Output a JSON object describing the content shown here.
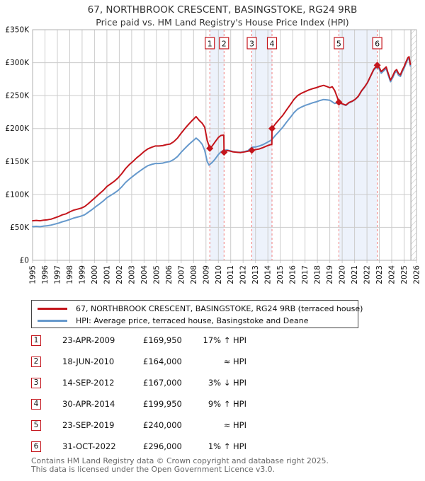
{
  "title": "67, NORTHBROOK CRESCENT, BASINGSTOKE, RG24 9RB",
  "subtitle": "Price paid vs. HM Land Registry's House Price Index (HPI)",
  "chart_data": {
    "type": "line",
    "xlim": [
      1995,
      2026
    ],
    "ylim": [
      0,
      350000
    ],
    "x_tick_years": [
      1995,
      1996,
      1997,
      1998,
      1999,
      2000,
      2001,
      2002,
      2003,
      2004,
      2005,
      2006,
      2007,
      2008,
      2009,
      2010,
      2011,
      2012,
      2013,
      2014,
      2015,
      2016,
      2017,
      2018,
      2019,
      2020,
      2021,
      2022,
      2023,
      2024,
      2025,
      2026
    ],
    "y_ticks": [
      {
        "v": 0,
        "label": "£0"
      },
      {
        "v": 50000,
        "label": "£50K"
      },
      {
        "v": 100000,
        "label": "£100K"
      },
      {
        "v": 150000,
        "label": "£150K"
      },
      {
        "v": 200000,
        "label": "£200K"
      },
      {
        "v": 250000,
        "label": "£250K"
      },
      {
        "v": 300000,
        "label": "£300K"
      },
      {
        "v": 350000,
        "label": "£350K"
      }
    ],
    "grid": true,
    "legend_position": "below",
    "accent": "#c4151c",
    "dash_color": "#f08080",
    "band_color": "#edf2fb",
    "grid_color": "#cccccc",
    "frame_color": "#b0b0b0",
    "future_start": 2025.55,
    "bands": [
      [
        2009.31,
        2010.46
      ],
      [
        2012.7,
        2014.33
      ],
      [
        2019.73,
        2022.83
      ]
    ],
    "markers": [
      {
        "n": 1,
        "year": 2009.31,
        "price": 169950
      },
      {
        "n": 2,
        "year": 2010.46,
        "price": 164000
      },
      {
        "n": 3,
        "year": 2012.7,
        "price": 167000
      },
      {
        "n": 4,
        "year": 2014.33,
        "price": 199950
      },
      {
        "n": 5,
        "year": 2019.73,
        "price": 240000
      },
      {
        "n": 6,
        "year": 2022.83,
        "price": 296000
      }
    ],
    "series": [
      {
        "id": "price-paid",
        "name": "67, NORTHBROOK CRESCENT, BASINGSTOKE, RG24 9RB (terraced house)",
        "color": "#c4151c",
        "points": [
          [
            1995.0,
            60000
          ],
          [
            1995.3,
            60500
          ],
          [
            1995.6,
            60000
          ],
          [
            1995.9,
            61000
          ],
          [
            1996.2,
            61500
          ],
          [
            1996.5,
            62500
          ],
          [
            1996.8,
            64500
          ],
          [
            1997.1,
            66500
          ],
          [
            1997.4,
            69000
          ],
          [
            1997.7,
            70500
          ],
          [
            1998.0,
            73500
          ],
          [
            1998.3,
            76000
          ],
          [
            1998.6,
            77500
          ],
          [
            1998.9,
            79000
          ],
          [
            1999.2,
            81500
          ],
          [
            1999.5,
            86000
          ],
          [
            1999.8,
            91000
          ],
          [
            2000.1,
            96000
          ],
          [
            2000.4,
            101000
          ],
          [
            2000.7,
            106000
          ],
          [
            2001.0,
            112000
          ],
          [
            2001.3,
            116000
          ],
          [
            2001.6,
            120000
          ],
          [
            2001.9,
            125000
          ],
          [
            2002.2,
            131500
          ],
          [
            2002.5,
            139000
          ],
          [
            2002.8,
            145000
          ],
          [
            2003.1,
            150000
          ],
          [
            2003.4,
            155500
          ],
          [
            2003.7,
            160000
          ],
          [
            2004.0,
            165000
          ],
          [
            2004.3,
            169000
          ],
          [
            2004.6,
            171500
          ],
          [
            2004.9,
            173500
          ],
          [
            2005.2,
            173500
          ],
          [
            2005.5,
            174000
          ],
          [
            2005.8,
            175500
          ],
          [
            2006.1,
            176500
          ],
          [
            2006.4,
            180000
          ],
          [
            2006.7,
            185500
          ],
          [
            2007.0,
            193000
          ],
          [
            2007.3,
            200000
          ],
          [
            2007.6,
            206500
          ],
          [
            2007.9,
            212500
          ],
          [
            2008.2,
            218000
          ],
          [
            2008.45,
            212500
          ],
          [
            2008.7,
            208000
          ],
          [
            2008.9,
            202000
          ],
          [
            2009.1,
            182000
          ],
          [
            2009.31,
            169950
          ],
          [
            2009.5,
            173500
          ],
          [
            2009.75,
            180000
          ],
          [
            2010.0,
            186500
          ],
          [
            2010.2,
            189500
          ],
          [
            2010.44,
            190000
          ],
          [
            2010.46,
            164000
          ],
          [
            2010.7,
            166500
          ],
          [
            2010.9,
            166000
          ],
          [
            2011.2,
            164500
          ],
          [
            2011.5,
            164000
          ],
          [
            2011.8,
            163500
          ],
          [
            2012.1,
            164500
          ],
          [
            2012.4,
            165500
          ],
          [
            2012.7,
            167000
          ],
          [
            2013.0,
            168000
          ],
          [
            2013.3,
            169000
          ],
          [
            2013.6,
            171000
          ],
          [
            2013.9,
            173500
          ],
          [
            2014.2,
            175500
          ],
          [
            2014.32,
            176000
          ],
          [
            2014.33,
            199950
          ],
          [
            2014.6,
            207000
          ],
          [
            2014.9,
            213500
          ],
          [
            2015.2,
            220000
          ],
          [
            2015.5,
            228000
          ],
          [
            2015.8,
            236000
          ],
          [
            2016.1,
            244000
          ],
          [
            2016.4,
            250000
          ],
          [
            2016.7,
            253500
          ],
          [
            2017.0,
            256000
          ],
          [
            2017.3,
            258500
          ],
          [
            2017.6,
            260500
          ],
          [
            2017.9,
            262000
          ],
          [
            2018.2,
            264000
          ],
          [
            2018.5,
            265500
          ],
          [
            2018.8,
            263500
          ],
          [
            2019.0,
            262000
          ],
          [
            2019.2,
            263500
          ],
          [
            2019.4,
            257500
          ],
          [
            2019.6,
            247500
          ],
          [
            2019.73,
            240000
          ],
          [
            2019.9,
            238500
          ],
          [
            2020.1,
            237000
          ],
          [
            2020.3,
            235500
          ],
          [
            2020.55,
            239500
          ],
          [
            2020.8,
            241500
          ],
          [
            2021.05,
            244500
          ],
          [
            2021.3,
            249000
          ],
          [
            2021.55,
            257000
          ],
          [
            2021.8,
            263000
          ],
          [
            2022.05,
            270000
          ],
          [
            2022.3,
            280000
          ],
          [
            2022.55,
            290000
          ],
          [
            2022.83,
            296000
          ],
          [
            2023.0,
            292500
          ],
          [
            2023.15,
            286500
          ],
          [
            2023.35,
            290000
          ],
          [
            2023.55,
            293500
          ],
          [
            2023.7,
            284500
          ],
          [
            2023.9,
            273500
          ],
          [
            2024.1,
            280500
          ],
          [
            2024.25,
            287000
          ],
          [
            2024.4,
            289500
          ],
          [
            2024.55,
            283500
          ],
          [
            2024.7,
            281500
          ],
          [
            2024.85,
            288500
          ],
          [
            2025.0,
            294000
          ],
          [
            2025.15,
            301000
          ],
          [
            2025.3,
            307500
          ],
          [
            2025.4,
            309000
          ],
          [
            2025.5,
            297500
          ]
        ]
      },
      {
        "id": "hpi",
        "name": "HPI: Average price, terraced house, Basingstoke and Deane",
        "color": "#6699cc",
        "points": [
          [
            1995.0,
            51000
          ],
          [
            1995.3,
            51500
          ],
          [
            1995.6,
            51000
          ],
          [
            1995.9,
            52000
          ],
          [
            1996.2,
            52500
          ],
          [
            1996.5,
            53500
          ],
          [
            1996.8,
            55000
          ],
          [
            1997.1,
            56500
          ],
          [
            1997.4,
            58500
          ],
          [
            1997.7,
            60000
          ],
          [
            1998.0,
            62000
          ],
          [
            1998.3,
            64000
          ],
          [
            1998.6,
            65500
          ],
          [
            1998.9,
            67000
          ],
          [
            1999.2,
            69000
          ],
          [
            1999.5,
            73000
          ],
          [
            1999.8,
            77000
          ],
          [
            2000.1,
            81500
          ],
          [
            2000.4,
            85500
          ],
          [
            2000.7,
            90000
          ],
          [
            2001.0,
            95000
          ],
          [
            2001.3,
            98500
          ],
          [
            2001.6,
            102000
          ],
          [
            2001.9,
            106000
          ],
          [
            2002.2,
            111500
          ],
          [
            2002.5,
            118000
          ],
          [
            2002.8,
            123000
          ],
          [
            2003.1,
            127500
          ],
          [
            2003.4,
            132000
          ],
          [
            2003.7,
            136000
          ],
          [
            2004.0,
            140000
          ],
          [
            2004.3,
            143500
          ],
          [
            2004.6,
            145500
          ],
          [
            2004.9,
            147000
          ],
          [
            2005.2,
            147000
          ],
          [
            2005.5,
            147500
          ],
          [
            2005.8,
            149000
          ],
          [
            2006.1,
            150000
          ],
          [
            2006.4,
            153000
          ],
          [
            2006.7,
            157500
          ],
          [
            2007.0,
            164000
          ],
          [
            2007.3,
            170000
          ],
          [
            2007.6,
            175500
          ],
          [
            2007.9,
            180500
          ],
          [
            2008.2,
            185500
          ],
          [
            2008.45,
            181500
          ],
          [
            2008.7,
            176000
          ],
          [
            2008.9,
            167000
          ],
          [
            2009.1,
            150000
          ],
          [
            2009.25,
            144500
          ],
          [
            2009.5,
            148500
          ],
          [
            2009.75,
            154000
          ],
          [
            2010.0,
            160500
          ],
          [
            2010.2,
            164500
          ],
          [
            2010.45,
            167000
          ],
          [
            2010.7,
            167500
          ],
          [
            2010.9,
            166500
          ],
          [
            2011.2,
            165000
          ],
          [
            2011.5,
            164000
          ],
          [
            2011.8,
            164000
          ],
          [
            2012.1,
            165000
          ],
          [
            2012.4,
            166500
          ],
          [
            2012.7,
            171500
          ],
          [
            2013.0,
            172000
          ],
          [
            2013.3,
            173500
          ],
          [
            2013.6,
            175500
          ],
          [
            2013.9,
            178500
          ],
          [
            2014.2,
            181500
          ],
          [
            2014.33,
            183500
          ],
          [
            2014.6,
            189500
          ],
          [
            2014.9,
            195500
          ],
          [
            2015.2,
            202000
          ],
          [
            2015.5,
            209500
          ],
          [
            2015.8,
            216500
          ],
          [
            2016.1,
            224000
          ],
          [
            2016.4,
            229500
          ],
          [
            2016.7,
            232500
          ],
          [
            2017.0,
            235000
          ],
          [
            2017.3,
            237000
          ],
          [
            2017.6,
            239000
          ],
          [
            2017.9,
            240500
          ],
          [
            2018.2,
            242500
          ],
          [
            2018.5,
            244000
          ],
          [
            2018.8,
            243500
          ],
          [
            2019.0,
            243000
          ],
          [
            2019.2,
            240500
          ],
          [
            2019.4,
            238000
          ],
          [
            2019.6,
            239000
          ],
          [
            2019.73,
            240000
          ],
          [
            2019.9,
            238000
          ],
          [
            2020.1,
            236500
          ],
          [
            2020.3,
            235000
          ],
          [
            2020.55,
            239000
          ],
          [
            2020.8,
            241000
          ],
          [
            2021.05,
            244000
          ],
          [
            2021.3,
            248500
          ],
          [
            2021.55,
            256500
          ],
          [
            2021.8,
            262500
          ],
          [
            2022.05,
            269500
          ],
          [
            2022.3,
            279500
          ],
          [
            2022.55,
            289000
          ],
          [
            2022.83,
            293500
          ],
          [
            2023.0,
            290000
          ],
          [
            2023.15,
            284000
          ],
          [
            2023.35,
            287500
          ],
          [
            2023.55,
            291000
          ],
          [
            2023.7,
            282000
          ],
          [
            2023.9,
            271000
          ],
          [
            2024.1,
            278000
          ],
          [
            2024.25,
            284500
          ],
          [
            2024.4,
            287000
          ],
          [
            2024.55,
            281000
          ],
          [
            2024.7,
            279000
          ],
          [
            2024.85,
            286000
          ],
          [
            2025.0,
            291500
          ],
          [
            2025.15,
            298500
          ],
          [
            2025.3,
            305000
          ],
          [
            2025.4,
            306500
          ],
          [
            2025.5,
            295000
          ]
        ]
      }
    ]
  },
  "legend": {
    "items": [
      {
        "label": "67, NORTHBROOK CRESCENT, BASINGSTOKE, RG24 9RB (terraced house)",
        "color": "#c4151c"
      },
      {
        "label": "HPI: Average price, terraced house, Basingstoke and Deane",
        "color": "#6699cc"
      }
    ]
  },
  "table": {
    "rows": [
      {
        "n": "1",
        "date": "23-APR-2009",
        "price": "£169,950",
        "hpi": "17% ↑ HPI"
      },
      {
        "n": "2",
        "date": "18-JUN-2010",
        "price": "£164,000",
        "hpi": "≈ HPI"
      },
      {
        "n": "3",
        "date": "14-SEP-2012",
        "price": "£167,000",
        "hpi": "3% ↓ HPI"
      },
      {
        "n": "4",
        "date": "30-APR-2014",
        "price": "£199,950",
        "hpi": "9% ↑ HPI"
      },
      {
        "n": "5",
        "date": "23-SEP-2019",
        "price": "£240,000",
        "hpi": "≈ HPI"
      },
      {
        "n": "6",
        "date": "31-OCT-2022",
        "price": "£296,000",
        "hpi": "1% ↑ HPI"
      }
    ]
  },
  "footer": {
    "line1": "Contains HM Land Registry data © Crown copyright and database right 2025.",
    "line2": "This data is licensed under the Open Government Licence v3.0."
  }
}
